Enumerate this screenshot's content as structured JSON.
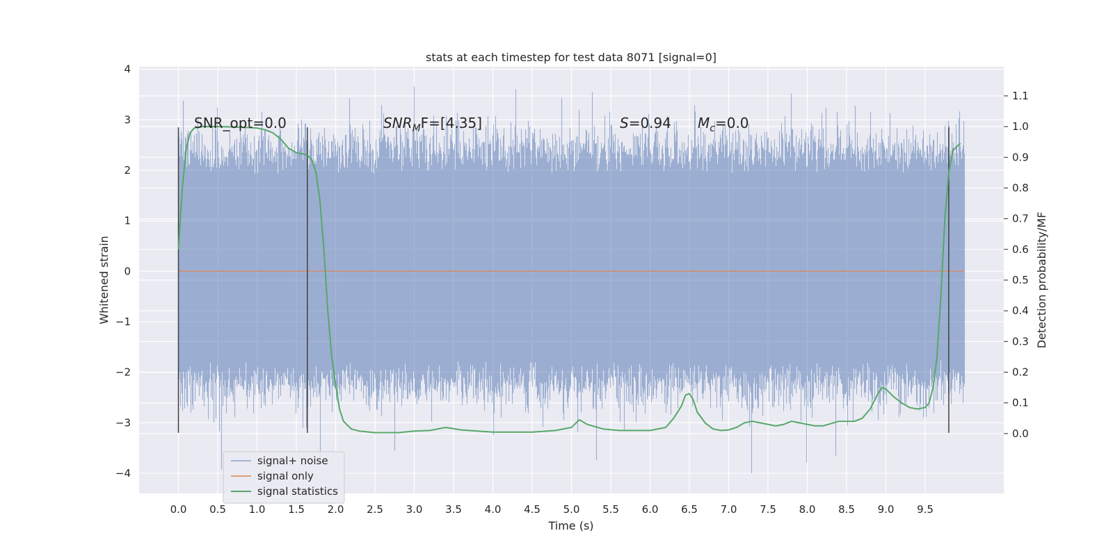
{
  "chart_data": {
    "type": "line",
    "title": "stats at each timestep for test data 8071 [signal=0]",
    "xlabel": "Time (s)",
    "ylabel_left": "Whitened strain",
    "ylabel_right": "Detection probability/MF",
    "xlim": [
      -0.5,
      10.5
    ],
    "ylim_left": [
      -4.4,
      4.05
    ],
    "ylim_right": [
      -0.195,
      1.195
    ],
    "x_ticks": [
      "0.0",
      "0.5",
      "1.0",
      "1.5",
      "2.0",
      "2.5",
      "3.0",
      "3.5",
      "4.0",
      "4.5",
      "5.0",
      "5.5",
      "6.0",
      "6.5",
      "7.0",
      "7.5",
      "8.0",
      "8.5",
      "9.0",
      "9.5"
    ],
    "y_ticks_left": [
      "4",
      "3",
      "2",
      "1",
      "0",
      "−1",
      "−2",
      "−3",
      "−4"
    ],
    "y_ticks_right": [
      "1.1",
      "1.0",
      "0.9",
      "0.8",
      "0.7",
      "0.6",
      "0.5",
      "0.4",
      "0.3",
      "0.2",
      "0.1",
      "0.0"
    ],
    "grid": true,
    "legend_position": "lower-left",
    "series": [
      {
        "name": "signal+ noise",
        "color": "#4c72b0",
        "x_range": [
          0.0,
          10.0
        ],
        "description_values": {
          "typical_min": -2.2,
          "typical_max": 2.4,
          "extreme_max": 3.65,
          "extreme_min": -4.05
        }
      },
      {
        "name": "signal only",
        "color": "#dd8452",
        "x": [
          0.0,
          10.0
        ],
        "y": [
          0.0,
          0.0
        ]
      },
      {
        "name": "signal statistics",
        "color": "#55a868",
        "x": [
          0.0,
          0.05,
          0.1,
          0.15,
          0.2,
          0.3,
          0.5,
          0.8,
          1.0,
          1.1,
          1.2,
          1.3,
          1.4,
          1.5,
          1.6,
          1.65,
          1.7,
          1.75,
          1.8,
          1.85,
          1.9,
          1.95,
          2.0,
          2.05,
          2.1,
          2.2,
          2.3,
          2.5,
          2.8,
          3.0,
          3.2,
          3.4,
          3.6,
          4.0,
          4.5,
          4.8,
          5.0,
          5.1,
          5.2,
          5.4,
          5.6,
          6.0,
          6.2,
          6.3,
          6.4,
          6.45,
          6.5,
          6.55,
          6.6,
          6.7,
          6.8,
          6.9,
          7.0,
          7.1,
          7.2,
          7.3,
          7.5,
          7.6,
          7.7,
          7.8,
          7.9,
          8.0,
          8.1,
          8.2,
          8.4,
          8.6,
          8.7,
          8.8,
          8.9,
          8.95,
          9.0,
          9.1,
          9.2,
          9.3,
          9.4,
          9.5,
          9.55,
          9.6,
          9.65,
          9.7,
          9.75,
          9.8,
          9.85,
          9.9,
          9.95
        ],
        "y": [
          0.6,
          0.8,
          0.93,
          0.98,
          0.995,
          1.0,
          1.0,
          0.998,
          0.995,
          0.99,
          0.98,
          0.96,
          0.93,
          0.915,
          0.91,
          0.905,
          0.89,
          0.85,
          0.76,
          0.6,
          0.4,
          0.25,
          0.16,
          0.08,
          0.04,
          0.015,
          0.008,
          0.003,
          0.003,
          0.008,
          0.01,
          0.02,
          0.012,
          0.005,
          0.005,
          0.01,
          0.02,
          0.045,
          0.03,
          0.015,
          0.01,
          0.01,
          0.02,
          0.05,
          0.09,
          0.125,
          0.13,
          0.11,
          0.07,
          0.035,
          0.015,
          0.01,
          0.012,
          0.02,
          0.035,
          0.04,
          0.03,
          0.025,
          0.03,
          0.04,
          0.035,
          0.03,
          0.025,
          0.025,
          0.04,
          0.04,
          0.05,
          0.08,
          0.13,
          0.15,
          0.145,
          0.12,
          0.1,
          0.085,
          0.08,
          0.085,
          0.1,
          0.15,
          0.25,
          0.45,
          0.7,
          0.85,
          0.92,
          0.935,
          0.945
        ]
      },
      {
        "name": "",
        "color": "#404040",
        "type": "vlines",
        "x": [
          0.0,
          1.64,
          9.8
        ]
      }
    ],
    "annotations": {
      "snr_opt": "SNR_opt=0.0",
      "snr_mf_prefix": "SNR",
      "snr_mf_sub": "M",
      "snr_mf_rest": "F=[4.35]",
      "s_prefix": "S",
      "s_rest": "=0.94",
      "mc_prefix": "M",
      "mc_sub": "c",
      "mc_rest": "=0.0"
    }
  },
  "colors": {
    "axes_bg": "#eaeaf2",
    "grid": "#ffffff",
    "noise": "#4c72b0",
    "signal_only": "#dd8452",
    "statistics": "#55a868",
    "vlines": "#404040"
  }
}
